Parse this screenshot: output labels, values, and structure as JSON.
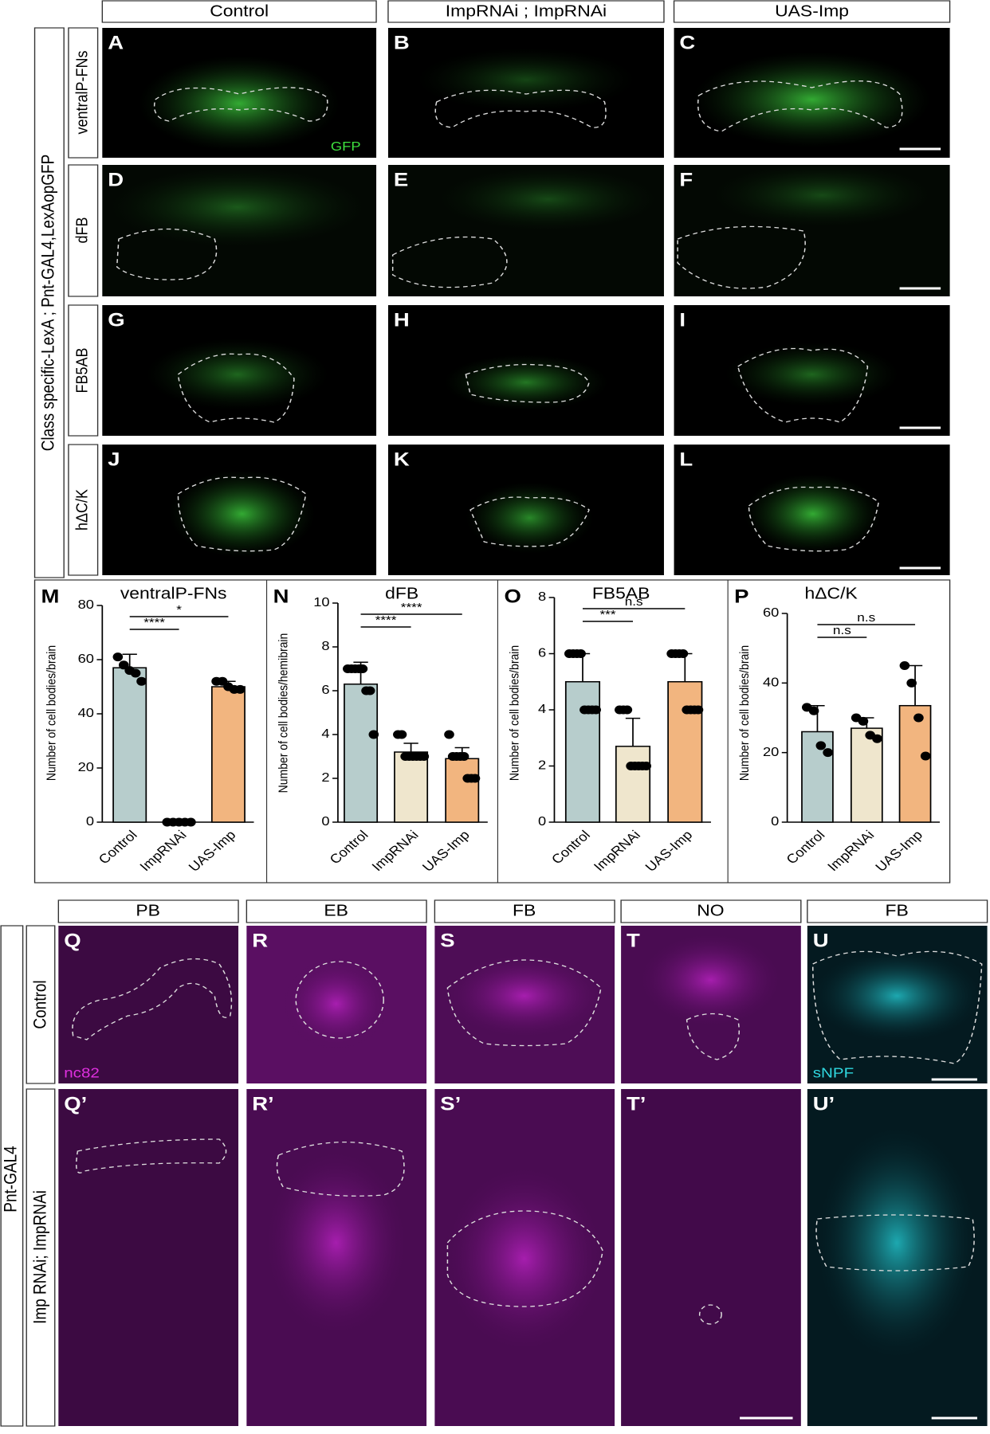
{
  "top_columns": [
    "Control",
    "ImpRNAi ; ImpRNAi",
    "UAS-Imp"
  ],
  "top_side_label": "Class specific-LexA ; Pnt-GAL4,LexAopGFP",
  "top_rows": [
    "ventralP-FNs",
    "dFB",
    "FB5AB",
    "hΔC/K"
  ],
  "top_panels": [
    "A",
    "B",
    "C",
    "D",
    "E",
    "F",
    "G",
    "H",
    "I",
    "J",
    "K",
    "L"
  ],
  "gfp_label": "GFP",
  "chart_data": [
    {
      "type": "bar",
      "panel": "M",
      "title": "ventralP-FNs",
      "y_label": "Number of cell bodies/brain",
      "categories": [
        "Control",
        "ImpRNAi",
        "UAS-Imp"
      ],
      "colors": [
        "#b7cdcc",
        "#efe6cd",
        "#f2b57f"
      ],
      "values": [
        57,
        0,
        50
      ],
      "errors": [
        5,
        0,
        2
      ],
      "points": [
        [
          61,
          58,
          56,
          55,
          52
        ],
        [
          0,
          0,
          0,
          0,
          0
        ],
        [
          52,
          52,
          50,
          49,
          49
        ]
      ],
      "ylim": [
        0,
        80
      ],
      "yticks": [
        0,
        20,
        40,
        60,
        80
      ],
      "annotations": [
        "****",
        "*"
      ]
    },
    {
      "type": "bar",
      "panel": "N",
      "title": "dFB",
      "y_label": "Number of cell bodies/hemibrain",
      "categories": [
        "Control",
        "ImpRNAi",
        "UAS-Imp"
      ],
      "colors": [
        "#b7cdcc",
        "#efe6cd",
        "#f2b57f"
      ],
      "values": [
        6.3,
        3.2,
        2.9
      ],
      "errors": [
        1,
        0.4,
        0.5
      ],
      "points": [
        [
          7,
          7,
          7,
          7,
          7,
          6,
          6,
          4
        ],
        [
          4,
          4,
          3,
          3,
          3,
          3,
          3,
          3
        ],
        [
          4,
          3,
          3,
          3,
          3,
          2,
          2,
          2
        ]
      ],
      "ylim": [
        0,
        10
      ],
      "yticks": [
        0,
        2,
        4,
        6,
        8,
        10
      ],
      "annotations": [
        "****",
        "****"
      ]
    },
    {
      "type": "bar",
      "panel": "O",
      "title": "FB5AB",
      "y_label": "Number of cell bodies/brain",
      "categories": [
        "Control",
        "ImpRNAi",
        "UAS-Imp"
      ],
      "colors": [
        "#b7cdcc",
        "#efe6cd",
        "#f2b57f"
      ],
      "values": [
        5,
        2.7,
        5
      ],
      "errors": [
        1,
        1,
        1
      ],
      "points": [
        [
          6,
          6,
          6,
          6,
          4,
          4,
          4,
          4
        ],
        [
          4,
          4,
          4,
          2,
          2,
          2,
          2,
          2
        ],
        [
          6,
          6,
          6,
          6,
          4,
          4,
          4,
          4
        ]
      ],
      "ylim": [
        0,
        8
      ],
      "yticks": [
        0,
        2,
        4,
        6,
        8
      ],
      "annotations": [
        "***",
        "n.s"
      ]
    },
    {
      "type": "bar",
      "panel": "P",
      "title": "hΔC/K",
      "y_label": "Number of cell bodies/brain",
      "categories": [
        "Control",
        "ImpRNAi",
        "UAS-Imp"
      ],
      "colors": [
        "#b7cdcc",
        "#efe6cd",
        "#f2b57f"
      ],
      "values": [
        26,
        27,
        33.5
      ],
      "errors": [
        7.5,
        3,
        11.5
      ],
      "points": [
        [
          33,
          32,
          22,
          20
        ],
        [
          30,
          29,
          25,
          24
        ],
        [
          45,
          40,
          30,
          19
        ]
      ],
      "ylim": [
        0,
        60
      ],
      "yticks": [
        0,
        20,
        40,
        60
      ],
      "annotations": [
        "n.s",
        "n.s"
      ]
    }
  ],
  "bottom_columns": [
    "PB",
    "EB",
    "FB",
    "NO",
    "FB"
  ],
  "bottom_side_label": "Pnt-GAL4",
  "bottom_rows": [
    "Control",
    "Imp RNAi; ImpRNAi"
  ],
  "bottom_panels": [
    "Q",
    "R",
    "S",
    "T",
    "U",
    "Q’",
    "R’",
    "S’",
    "T’",
    "U’"
  ],
  "nc82_label": "nc82",
  "snpf_label": "sNPF"
}
